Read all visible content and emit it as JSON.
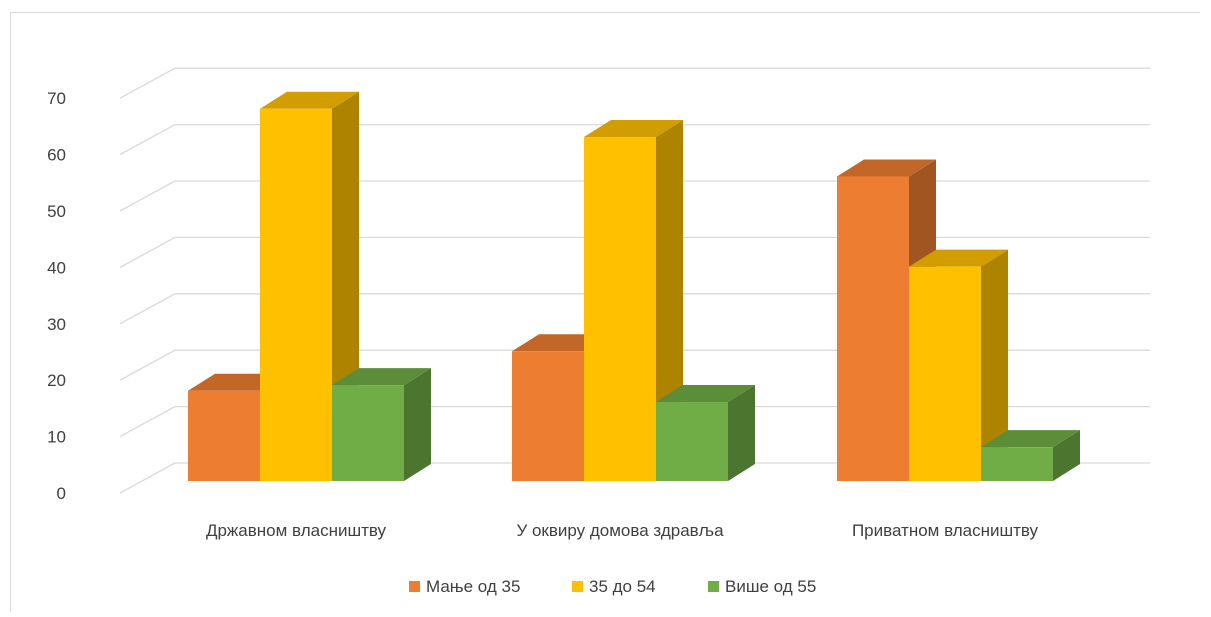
{
  "chart_data": {
    "type": "bar",
    "style": "3d-clustered-column",
    "categories": [
      "Државном власништву",
      "У оквиру домова здравља",
      "Приватном власништву"
    ],
    "series": [
      {
        "name": "Мање од 35",
        "values": [
          16,
          23,
          54
        ],
        "color": "#ED7D31"
      },
      {
        "name": "35 до 54",
        "values": [
          66,
          61,
          38
        ],
        "color": "#FFC000"
      },
      {
        "name": "Више од 55",
        "values": [
          17,
          14,
          6
        ],
        "color": "#70AD47"
      }
    ],
    "title": "",
    "xlabel": "",
    "ylabel": "",
    "ylim": [
      0,
      70
    ],
    "yticks": [
      0,
      10,
      20,
      30,
      40,
      50,
      60,
      70
    ],
    "grid": true,
    "legend": "bottom-center"
  }
}
